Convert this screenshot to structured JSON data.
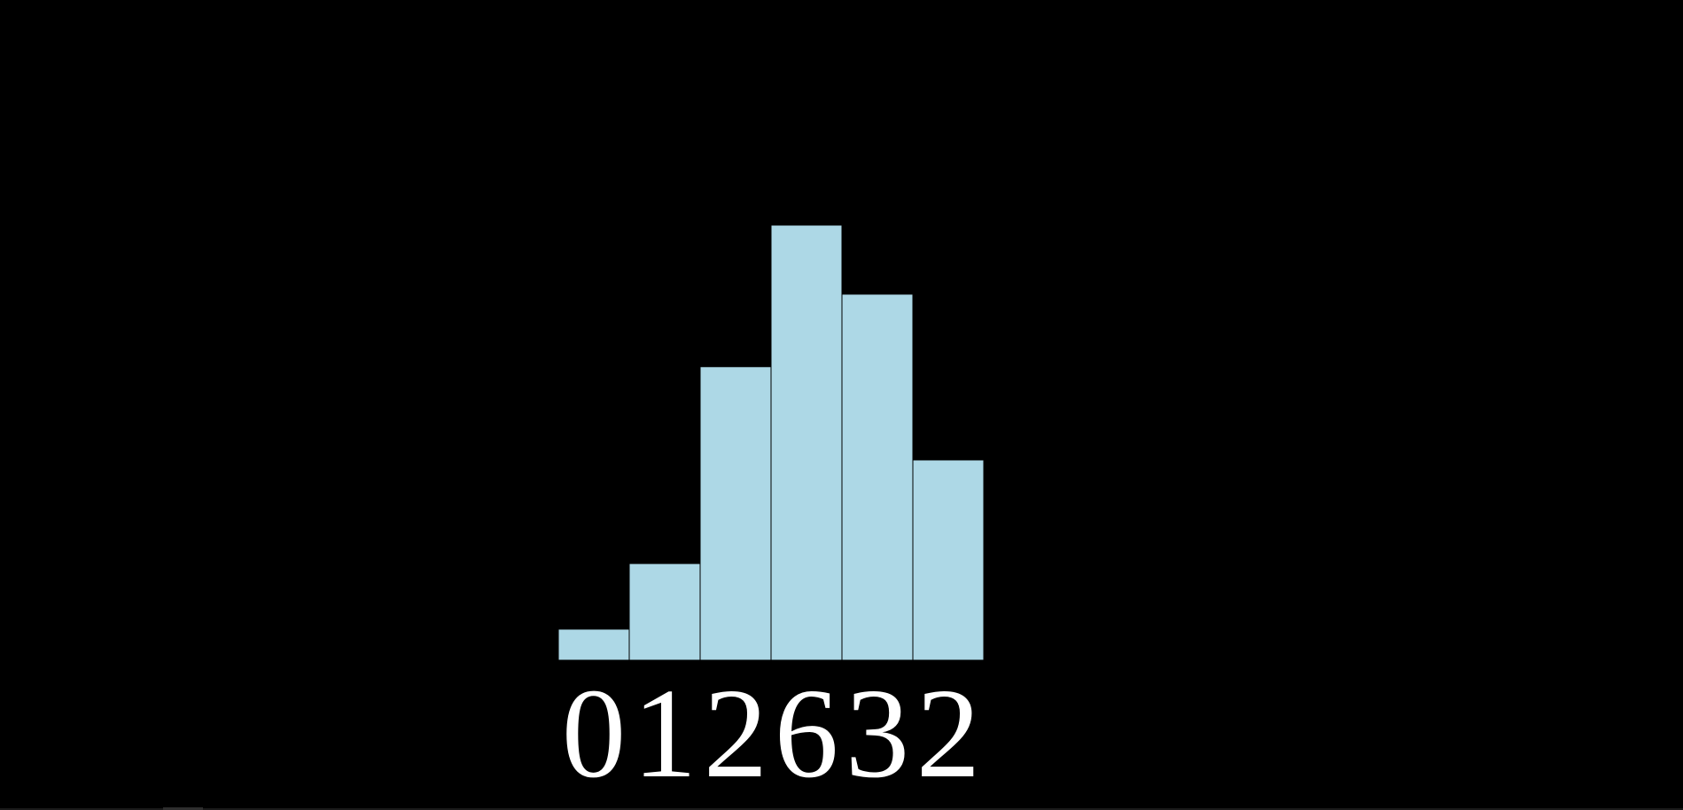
{
  "theme": {
    "background": "#000000",
    "bar_fill": "#add8e6",
    "bar_stroke": "#000000",
    "label_color": "#ffffff"
  },
  "chart_data": {
    "type": "bar",
    "categories": [
      "0",
      "1",
      "2",
      "6",
      "3",
      "2"
    ],
    "values": [
      0.45,
      1.4,
      4.25,
      6.3,
      5.3,
      2.9
    ],
    "title": "",
    "xlabel": "",
    "ylabel": "",
    "ylim": [
      0,
      6.3
    ],
    "grid": false,
    "legend": "none"
  }
}
